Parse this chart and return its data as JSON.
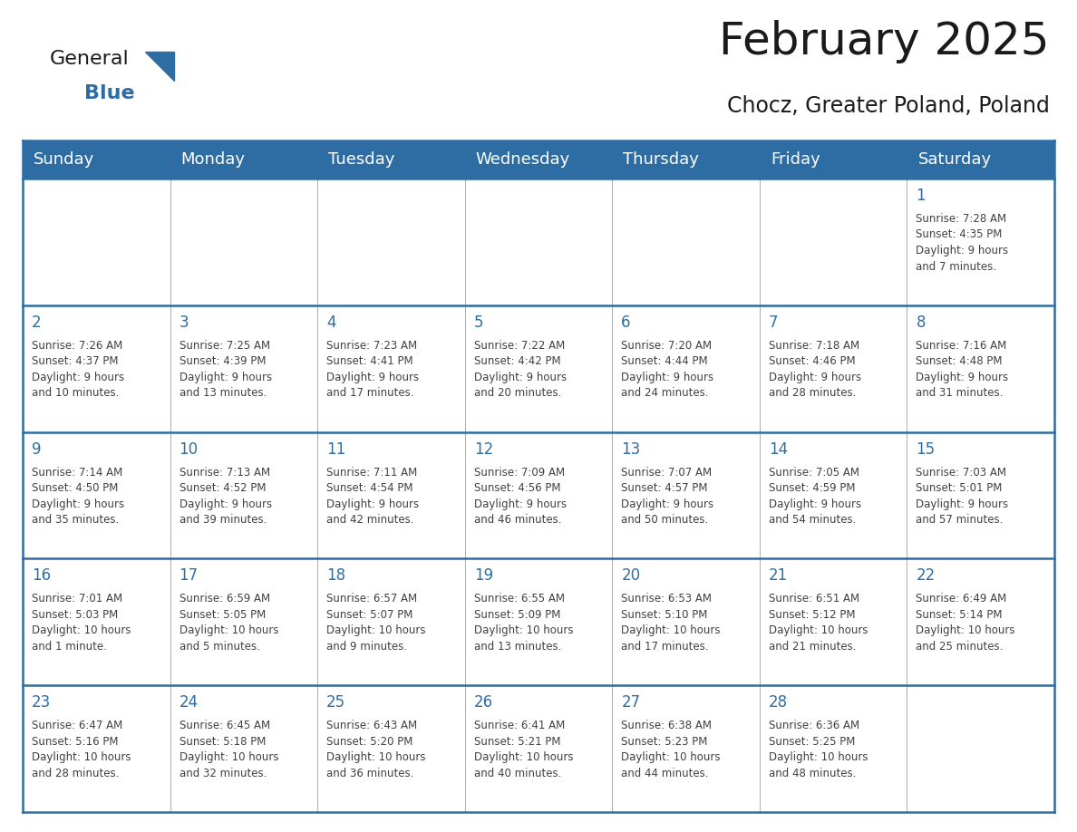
{
  "title": "February 2025",
  "subtitle": "Chocz, Greater Poland, Poland",
  "header_bg": "#2E6DA4",
  "header_text_color": "#FFFFFF",
  "cell_bg": "#FFFFFF",
  "day_number_color": "#2E6DA4",
  "info_text_color": "#404040",
  "border_color": "#2E6DA4",
  "grid_color": "#AAAAAA",
  "days_of_week": [
    "Sunday",
    "Monday",
    "Tuesday",
    "Wednesday",
    "Thursday",
    "Friday",
    "Saturday"
  ],
  "weeks": [
    [
      {
        "day": "",
        "info": ""
      },
      {
        "day": "",
        "info": ""
      },
      {
        "day": "",
        "info": ""
      },
      {
        "day": "",
        "info": ""
      },
      {
        "day": "",
        "info": ""
      },
      {
        "day": "",
        "info": ""
      },
      {
        "day": "1",
        "info": "Sunrise: 7:28 AM\nSunset: 4:35 PM\nDaylight: 9 hours\nand 7 minutes."
      }
    ],
    [
      {
        "day": "2",
        "info": "Sunrise: 7:26 AM\nSunset: 4:37 PM\nDaylight: 9 hours\nand 10 minutes."
      },
      {
        "day": "3",
        "info": "Sunrise: 7:25 AM\nSunset: 4:39 PM\nDaylight: 9 hours\nand 13 minutes."
      },
      {
        "day": "4",
        "info": "Sunrise: 7:23 AM\nSunset: 4:41 PM\nDaylight: 9 hours\nand 17 minutes."
      },
      {
        "day": "5",
        "info": "Sunrise: 7:22 AM\nSunset: 4:42 PM\nDaylight: 9 hours\nand 20 minutes."
      },
      {
        "day": "6",
        "info": "Sunrise: 7:20 AM\nSunset: 4:44 PM\nDaylight: 9 hours\nand 24 minutes."
      },
      {
        "day": "7",
        "info": "Sunrise: 7:18 AM\nSunset: 4:46 PM\nDaylight: 9 hours\nand 28 minutes."
      },
      {
        "day": "8",
        "info": "Sunrise: 7:16 AM\nSunset: 4:48 PM\nDaylight: 9 hours\nand 31 minutes."
      }
    ],
    [
      {
        "day": "9",
        "info": "Sunrise: 7:14 AM\nSunset: 4:50 PM\nDaylight: 9 hours\nand 35 minutes."
      },
      {
        "day": "10",
        "info": "Sunrise: 7:13 AM\nSunset: 4:52 PM\nDaylight: 9 hours\nand 39 minutes."
      },
      {
        "day": "11",
        "info": "Sunrise: 7:11 AM\nSunset: 4:54 PM\nDaylight: 9 hours\nand 42 minutes."
      },
      {
        "day": "12",
        "info": "Sunrise: 7:09 AM\nSunset: 4:56 PM\nDaylight: 9 hours\nand 46 minutes."
      },
      {
        "day": "13",
        "info": "Sunrise: 7:07 AM\nSunset: 4:57 PM\nDaylight: 9 hours\nand 50 minutes."
      },
      {
        "day": "14",
        "info": "Sunrise: 7:05 AM\nSunset: 4:59 PM\nDaylight: 9 hours\nand 54 minutes."
      },
      {
        "day": "15",
        "info": "Sunrise: 7:03 AM\nSunset: 5:01 PM\nDaylight: 9 hours\nand 57 minutes."
      }
    ],
    [
      {
        "day": "16",
        "info": "Sunrise: 7:01 AM\nSunset: 5:03 PM\nDaylight: 10 hours\nand 1 minute."
      },
      {
        "day": "17",
        "info": "Sunrise: 6:59 AM\nSunset: 5:05 PM\nDaylight: 10 hours\nand 5 minutes."
      },
      {
        "day": "18",
        "info": "Sunrise: 6:57 AM\nSunset: 5:07 PM\nDaylight: 10 hours\nand 9 minutes."
      },
      {
        "day": "19",
        "info": "Sunrise: 6:55 AM\nSunset: 5:09 PM\nDaylight: 10 hours\nand 13 minutes."
      },
      {
        "day": "20",
        "info": "Sunrise: 6:53 AM\nSunset: 5:10 PM\nDaylight: 10 hours\nand 17 minutes."
      },
      {
        "day": "21",
        "info": "Sunrise: 6:51 AM\nSunset: 5:12 PM\nDaylight: 10 hours\nand 21 minutes."
      },
      {
        "day": "22",
        "info": "Sunrise: 6:49 AM\nSunset: 5:14 PM\nDaylight: 10 hours\nand 25 minutes."
      }
    ],
    [
      {
        "day": "23",
        "info": "Sunrise: 6:47 AM\nSunset: 5:16 PM\nDaylight: 10 hours\nand 28 minutes."
      },
      {
        "day": "24",
        "info": "Sunrise: 6:45 AM\nSunset: 5:18 PM\nDaylight: 10 hours\nand 32 minutes."
      },
      {
        "day": "25",
        "info": "Sunrise: 6:43 AM\nSunset: 5:20 PM\nDaylight: 10 hours\nand 36 minutes."
      },
      {
        "day": "26",
        "info": "Sunrise: 6:41 AM\nSunset: 5:21 PM\nDaylight: 10 hours\nand 40 minutes."
      },
      {
        "day": "27",
        "info": "Sunrise: 6:38 AM\nSunset: 5:23 PM\nDaylight: 10 hours\nand 44 minutes."
      },
      {
        "day": "28",
        "info": "Sunrise: 6:36 AM\nSunset: 5:25 PM\nDaylight: 10 hours\nand 48 minutes."
      },
      {
        "day": "",
        "info": ""
      }
    ]
  ],
  "logo_general_color": "#1a1a1a",
  "logo_blue_color": "#2E6DA4",
  "logo_triangle_color": "#2E6DA4",
  "title_color": "#1a1a1a",
  "subtitle_color": "#1a1a1a",
  "title_fontsize": 36,
  "subtitle_fontsize": 17,
  "header_fontsize": 13,
  "day_num_fontsize": 12,
  "info_fontsize": 8.5
}
